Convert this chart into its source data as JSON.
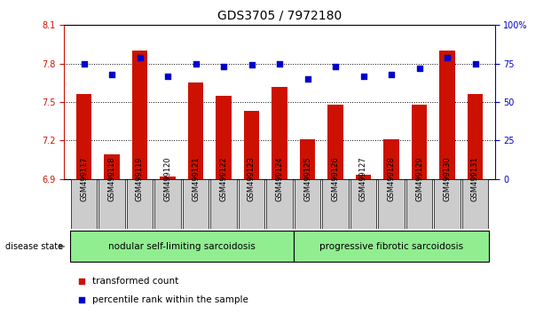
{
  "title": "GDS3705 / 7972180",
  "samples": [
    "GSM499117",
    "GSM499118",
    "GSM499119",
    "GSM499120",
    "GSM499121",
    "GSM499122",
    "GSM499123",
    "GSM499124",
    "GSM499125",
    "GSM499126",
    "GSM499127",
    "GSM499128",
    "GSM499129",
    "GSM499130",
    "GSM499131"
  ],
  "bar_values": [
    7.56,
    7.09,
    7.9,
    6.92,
    7.65,
    7.55,
    7.43,
    7.62,
    7.21,
    7.48,
    6.93,
    7.21,
    7.48,
    7.9,
    7.56
  ],
  "dot_values": [
    75,
    68,
    79,
    67,
    75,
    73,
    74,
    75,
    65,
    73,
    67,
    68,
    72,
    79,
    75
  ],
  "bar_color": "#cc1100",
  "dot_color": "#0000cc",
  "ylim_left": [
    6.9,
    8.1
  ],
  "ylim_right": [
    0,
    100
  ],
  "yticks_left": [
    6.9,
    7.2,
    7.5,
    7.8,
    8.1
  ],
  "yticks_right": [
    0,
    25,
    50,
    75,
    100
  ],
  "hline_dotted": [
    7.2,
    7.5,
    7.8
  ],
  "group1_label": "nodular self-limiting sarcoidosis",
  "group2_label": "progressive fibrotic sarcoidosis",
  "group1_count": 8,
  "group2_count": 7,
  "disease_state_label": "disease state",
  "legend1_label": "transformed count",
  "legend2_label": "percentile rank within the sample",
  "bg_color": "#ffffff",
  "group_bg": "#90ee90",
  "label_bg": "#cccccc",
  "title_fontsize": 10,
  "tick_fontsize": 7,
  "axis_color_left": "#cc1100",
  "axis_color_right": "#0000cc"
}
